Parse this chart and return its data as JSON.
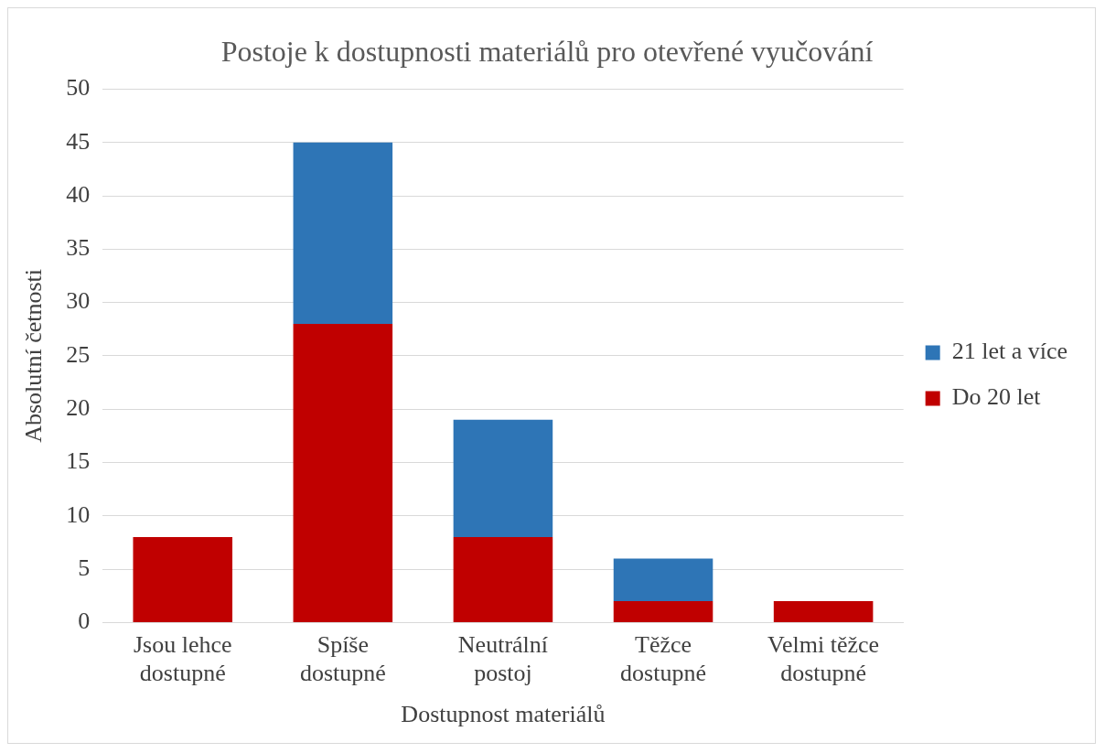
{
  "chart_data": {
    "type": "bar",
    "title": "Postoje k dostupnosti materiálů pro otevřené vyučování",
    "xlabel": "Dostupnost materiálů",
    "ylabel": "Absolutní četnosti",
    "categories": [
      "Jsou lehce dostupné",
      "Spíše dostupné",
      "Neutrální postoj",
      "Těžce dostupné",
      "Velmi těžce dostupné"
    ],
    "series": [
      {
        "name": "Do 20 let",
        "color": "#c00000",
        "values": [
          8,
          28,
          8,
          2,
          2
        ]
      },
      {
        "name": "21 let a více",
        "color": "#2e75b6",
        "values": [
          0,
          17,
          11,
          4,
          0
        ]
      }
    ],
    "stacked": true,
    "ylim": [
      0,
      50
    ],
    "yticks": [
      0,
      5,
      10,
      15,
      20,
      25,
      30,
      35,
      40,
      45,
      50
    ],
    "grid": "y",
    "legend": "right"
  }
}
